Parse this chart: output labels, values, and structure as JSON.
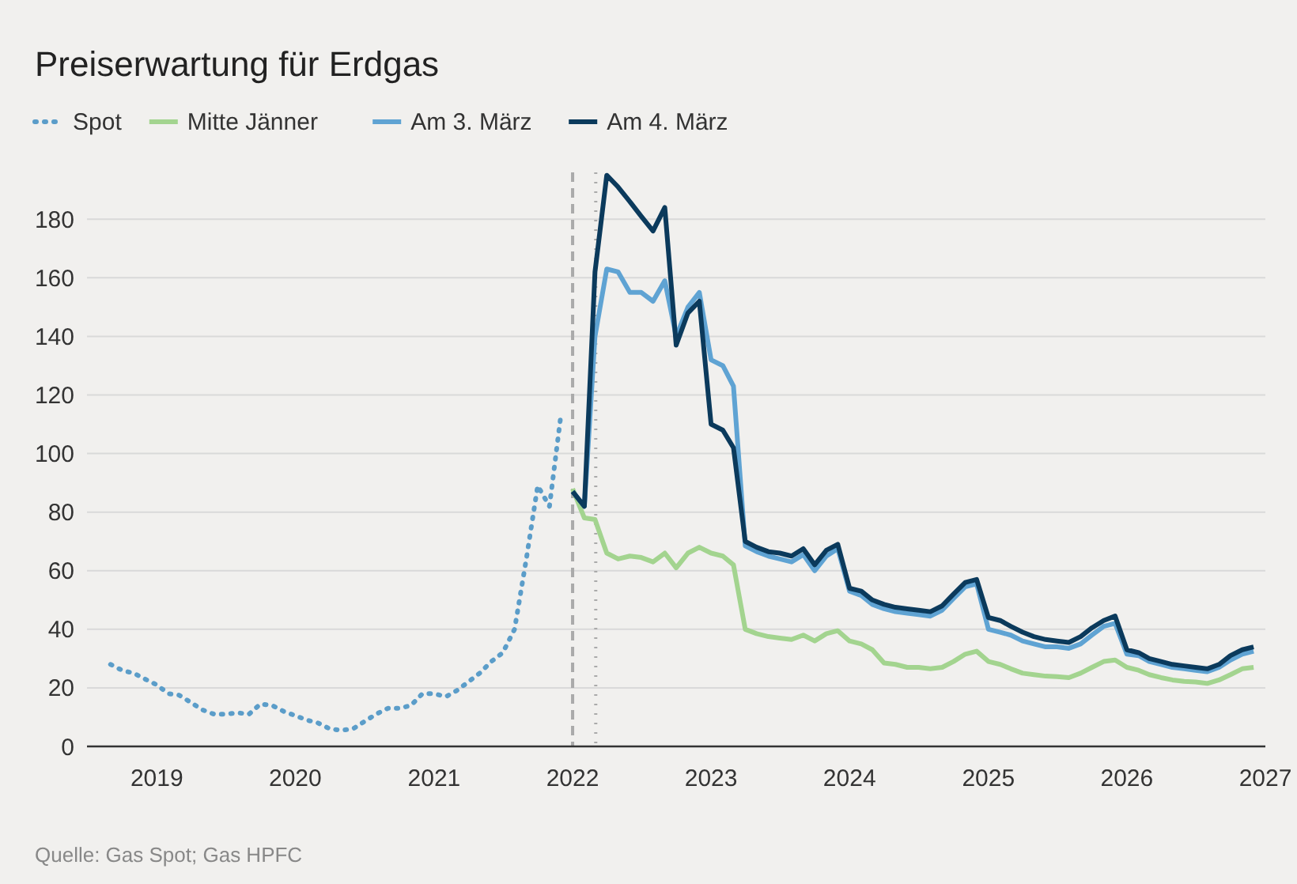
{
  "chart_data": {
    "type": "line",
    "title": "Preiserwartung für Erdgas",
    "legend": "top left",
    "grid": "y",
    "xlim": [
      "2018-07",
      "2027-01"
    ],
    "xticks": [
      "2019",
      "2020",
      "2021",
      "2022",
      "2023",
      "2024",
      "2025",
      "2026",
      "2027"
    ],
    "ylim": [
      0,
      196
    ],
    "yticks": [
      0,
      20,
      40,
      60,
      80,
      100,
      120,
      140,
      160,
      180
    ],
    "ref_lines": [
      {
        "axis": "x",
        "value": "2022-01-01",
        "color": "#aaaaaa",
        "line_style": "dashed"
      },
      {
        "axis": "x",
        "value": "2022-03-03",
        "color": "#aaaaaa",
        "line_style": "dotted"
      }
    ],
    "annotations": [
      "Quelle: Gas Spot; Gas HPFC"
    ],
    "series": [
      {
        "name": "Spot",
        "color": "#5b9dc9",
        "line_style": "dotted",
        "x": [
          "2018-09",
          "2018-10",
          "2018-11",
          "2018-12",
          "2019-01",
          "2019-02",
          "2019-03",
          "2019-04",
          "2019-05",
          "2019-06",
          "2019-07",
          "2019-08",
          "2019-09",
          "2019-10",
          "2019-11",
          "2019-12",
          "2020-01",
          "2020-02",
          "2020-03",
          "2020-04",
          "2020-05",
          "2020-06",
          "2020-07",
          "2020-08",
          "2020-09",
          "2020-10",
          "2020-11",
          "2020-12",
          "2021-01",
          "2021-02",
          "2021-03",
          "2021-04",
          "2021-05",
          "2021-06",
          "2021-07",
          "2021-08",
          "2021-09",
          "2021-10",
          "2021-11",
          "2021-12"
        ],
        "values": [
          28,
          26,
          25,
          23,
          21,
          18,
          17.5,
          15,
          12.5,
          11,
          11,
          11.5,
          11,
          14.5,
          14,
          12,
          10.5,
          9,
          8,
          6,
          5.5,
          6,
          8.5,
          11,
          13,
          13,
          14,
          18,
          18,
          17,
          19,
          22,
          25,
          29,
          32,
          40,
          64,
          89,
          82,
          113
        ]
      },
      {
        "name": "Mitte Jänner",
        "color": "#a3d48f",
        "line_style": "solid",
        "x": [
          "2022-01",
          "2022-02",
          "2022-03",
          "2022-04",
          "2022-05",
          "2022-06",
          "2022-07",
          "2022-08",
          "2022-09",
          "2022-10",
          "2022-11",
          "2022-12",
          "2023-01",
          "2023-02",
          "2023-03",
          "2023-04",
          "2023-05",
          "2023-06",
          "2023-07",
          "2023-08",
          "2023-09",
          "2023-10",
          "2023-11",
          "2023-12",
          "2024-01",
          "2024-02",
          "2024-03",
          "2024-04",
          "2024-05",
          "2024-06",
          "2024-07",
          "2024-08",
          "2024-09",
          "2024-10",
          "2024-11",
          "2024-12",
          "2025-01",
          "2025-02",
          "2025-03",
          "2025-04",
          "2025-05",
          "2025-06",
          "2025-07",
          "2025-08",
          "2025-09",
          "2025-10",
          "2025-11",
          "2025-12",
          "2026-01",
          "2026-02",
          "2026-03",
          "2026-04",
          "2026-05",
          "2026-06",
          "2026-07",
          "2026-08",
          "2026-09",
          "2026-10",
          "2026-11",
          "2026-12"
        ],
        "values": [
          88,
          78,
          77.5,
          66,
          64,
          65,
          64.5,
          63,
          66,
          61,
          66,
          68,
          66,
          65,
          62,
          40,
          38.5,
          37.5,
          37,
          36.5,
          38,
          36,
          38.5,
          39.5,
          36,
          35,
          33,
          28.5,
          28,
          27,
          27,
          26.5,
          27,
          29,
          31.5,
          32.5,
          29,
          28,
          26.5,
          25,
          24.5,
          24,
          23.8,
          23.5,
          25,
          27,
          29,
          29.5,
          27,
          26,
          24.5,
          23.5,
          22.7,
          22.2,
          22,
          21.5,
          22.7,
          24.5,
          26.5,
          27
        ]
      },
      {
        "name": "Am 3. März",
        "color": "#5fa3d3",
        "line_style": "solid",
        "x": [
          "2022-01",
          "2022-02",
          "2022-03",
          "2022-04",
          "2022-05",
          "2022-06",
          "2022-07",
          "2022-08",
          "2022-09",
          "2022-10",
          "2022-11",
          "2022-12",
          "2023-01",
          "2023-02",
          "2023-03",
          "2023-04",
          "2023-05",
          "2023-06",
          "2023-07",
          "2023-08",
          "2023-09",
          "2023-10",
          "2023-11",
          "2023-12",
          "2024-01",
          "2024-02",
          "2024-03",
          "2024-04",
          "2024-05",
          "2024-06",
          "2024-07",
          "2024-08",
          "2024-09",
          "2024-10",
          "2024-11",
          "2024-12",
          "2025-01",
          "2025-02",
          "2025-03",
          "2025-04",
          "2025-05",
          "2025-06",
          "2025-07",
          "2025-08",
          "2025-09",
          "2025-10",
          "2025-11",
          "2025-12",
          "2026-01",
          "2026-02",
          "2026-03",
          "2026-04",
          "2026-05",
          "2026-06",
          "2026-07",
          "2026-08",
          "2026-09",
          "2026-10",
          "2026-11",
          "2026-12"
        ],
        "values": [
          87,
          82,
          140,
          163,
          162,
          155,
          155,
          152,
          159,
          140,
          150,
          155,
          132,
          130,
          123,
          68.5,
          66.5,
          65,
          64,
          63,
          65.5,
          60,
          65,
          67.5,
          53,
          51.5,
          48.5,
          47,
          46,
          45.5,
          45,
          44.5,
          46.5,
          50.5,
          54.5,
          55.5,
          40,
          39,
          38,
          36,
          35,
          34,
          34,
          33.5,
          35,
          38,
          41,
          42,
          31.5,
          31,
          29,
          28,
          27,
          26.5,
          26,
          25.5,
          27,
          29.5,
          31.5,
          32.5
        ]
      },
      {
        "name": "Am 4. März",
        "color": "#0b3a5c",
        "line_style": "solid",
        "x": [
          "2022-01",
          "2022-02",
          "2022-03",
          "2022-04",
          "2022-05",
          "2022-06",
          "2022-07",
          "2022-08",
          "2022-09",
          "2022-10",
          "2022-11",
          "2022-12",
          "2023-01",
          "2023-02",
          "2023-03",
          "2023-04",
          "2023-05",
          "2023-06",
          "2023-07",
          "2023-08",
          "2023-09",
          "2023-10",
          "2023-11",
          "2023-12",
          "2024-01",
          "2024-02",
          "2024-03",
          "2024-04",
          "2024-05",
          "2024-06",
          "2024-07",
          "2024-08",
          "2024-09",
          "2024-10",
          "2024-11",
          "2024-12",
          "2025-01",
          "2025-02",
          "2025-03",
          "2025-04",
          "2025-05",
          "2025-06",
          "2025-07",
          "2025-08",
          "2025-09",
          "2025-10",
          "2025-11",
          "2025-12",
          "2026-01",
          "2026-02",
          "2026-03",
          "2026-04",
          "2026-05",
          "2026-06",
          "2026-07",
          "2026-08",
          "2026-09",
          "2026-10",
          "2026-11",
          "2026-12"
        ],
        "values": [
          87,
          82,
          162,
          195,
          191,
          186,
          181,
          176,
          184,
          137,
          148,
          152,
          110,
          108,
          102,
          70,
          68,
          66.5,
          66,
          65,
          67.5,
          62,
          67,
          69,
          54,
          53,
          50,
          48.5,
          47.5,
          47,
          46.5,
          46,
          48,
          52,
          56,
          57,
          44,
          43,
          41,
          39,
          37.5,
          36.5,
          36,
          35.5,
          37.5,
          40.5,
          43,
          44.5,
          33,
          32,
          30,
          29,
          28,
          27.5,
          27,
          26.5,
          28,
          31,
          33,
          34
        ]
      }
    ]
  }
}
